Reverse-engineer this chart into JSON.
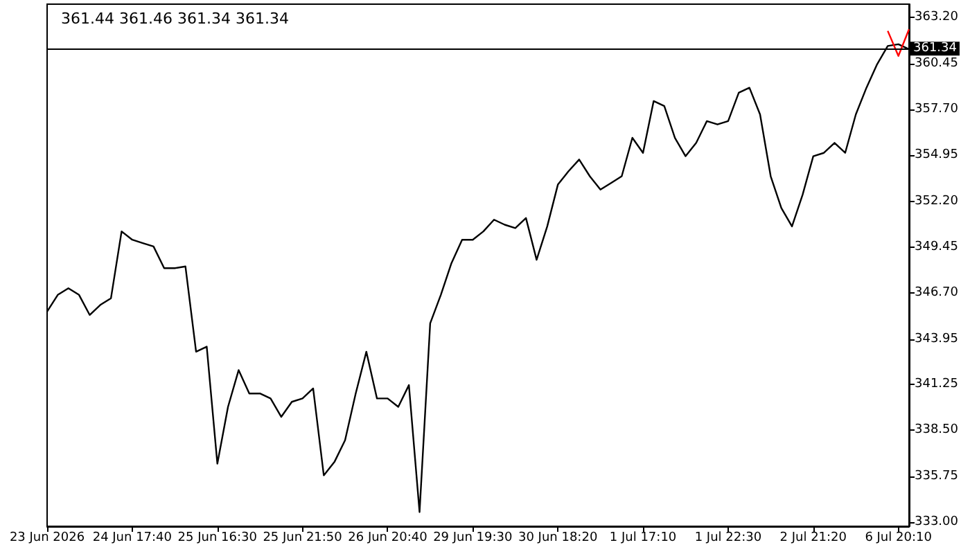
{
  "chart_data": {
    "type": "line",
    "annotations": [
      "361.44 361.46 361.34 361.34"
    ],
    "categories": [
      "23 Jun 2026",
      null,
      null,
      null,
      null,
      null,
      null,
      null,
      "24 Jun 17:40",
      null,
      null,
      null,
      null,
      null,
      null,
      null,
      "25 Jun 16:30",
      null,
      null,
      null,
      null,
      null,
      null,
      null,
      "25 Jun 21:50",
      null,
      null,
      null,
      null,
      null,
      null,
      null,
      "26 Jun 20:40",
      null,
      null,
      null,
      null,
      null,
      null,
      null,
      "29 Jun 19:30",
      null,
      null,
      null,
      null,
      null,
      null,
      null,
      "30 Jun 18:20",
      null,
      null,
      null,
      null,
      null,
      null,
      null,
      "1 Jul 17:10",
      null,
      null,
      null,
      null,
      null,
      null,
      null,
      "1 Jul 22:30",
      null,
      null,
      null,
      null,
      null,
      null,
      null,
      "2 Jul 21:20",
      null,
      null,
      null,
      null,
      null,
      null,
      null,
      "6 Jul 20:10",
      null
    ],
    "series": [
      {
        "color": "#000000",
        "values": [
          345.6,
          346.6,
          347.0,
          346.6,
          345.4,
          346.0,
          346.4,
          350.4,
          349.9,
          349.7,
          349.5,
          348.2,
          348.2,
          348.3,
          343.2,
          343.5,
          336.5,
          339.9,
          342.1,
          340.7,
          340.7,
          340.4,
          339.3,
          340.2,
          340.4,
          341.0,
          335.8,
          336.6,
          337.9,
          340.7,
          343.2,
          340.4,
          340.4,
          339.9,
          341.2,
          333.6,
          344.9,
          346.6,
          348.5,
          349.9,
          349.9,
          350.4,
          351.1,
          350.8,
          350.6,
          351.2,
          348.7,
          350.7,
          353.2,
          354.0,
          354.7,
          353.7,
          352.9,
          353.3,
          353.7,
          356.0,
          355.1,
          358.2,
          357.9,
          356.0,
          354.9,
          355.7,
          357.0,
          356.8,
          357.0,
          358.7,
          359.0,
          357.4,
          353.7,
          351.8,
          350.7,
          352.6,
          354.9,
          355.1,
          355.7,
          355.1,
          357.4,
          359.0,
          360.4,
          361.5,
          361.6,
          361.3
        ]
      },
      {
        "color": "#ff0000",
        "values": [
          null,
          null,
          null,
          null,
          null,
          null,
          null,
          null,
          null,
          null,
          null,
          null,
          null,
          null,
          null,
          null,
          null,
          null,
          null,
          null,
          null,
          null,
          null,
          null,
          null,
          null,
          null,
          null,
          null,
          null,
          null,
          null,
          null,
          null,
          null,
          null,
          null,
          null,
          null,
          null,
          null,
          null,
          null,
          null,
          null,
          null,
          null,
          null,
          null,
          null,
          null,
          null,
          null,
          null,
          null,
          null,
          null,
          null,
          null,
          null,
          null,
          null,
          null,
          null,
          null,
          null,
          null,
          null,
          null,
          null,
          null,
          null,
          null,
          null,
          null,
          null,
          null,
          null,
          null,
          362.4,
          360.9,
          362.5
        ]
      }
    ],
    "ylim": [
      332.75,
      364.0
    ],
    "yticks": [
      {
        "value": 333.0,
        "label": "333.00"
      },
      {
        "value": 335.75,
        "label": "335.75"
      },
      {
        "value": 338.5,
        "label": "338.50"
      },
      {
        "value": 341.25,
        "label": "341.25"
      },
      {
        "value": 343.95,
        "label": "343.95"
      },
      {
        "value": 346.7,
        "label": "346.70"
      },
      {
        "value": 349.45,
        "label": "349.45"
      },
      {
        "value": 352.2,
        "label": "352.20"
      },
      {
        "value": 354.95,
        "label": "354.95"
      },
      {
        "value": 357.7,
        "label": "357.70"
      },
      {
        "value": 360.45,
        "label": "360.45"
      },
      {
        "value": 363.2,
        "label": "363.20"
      }
    ],
    "ref_lines": [
      {
        "axis": "y",
        "value": 361.34,
        "label": "361.34",
        "color": "#000000"
      }
    ],
    "grid": false
  }
}
